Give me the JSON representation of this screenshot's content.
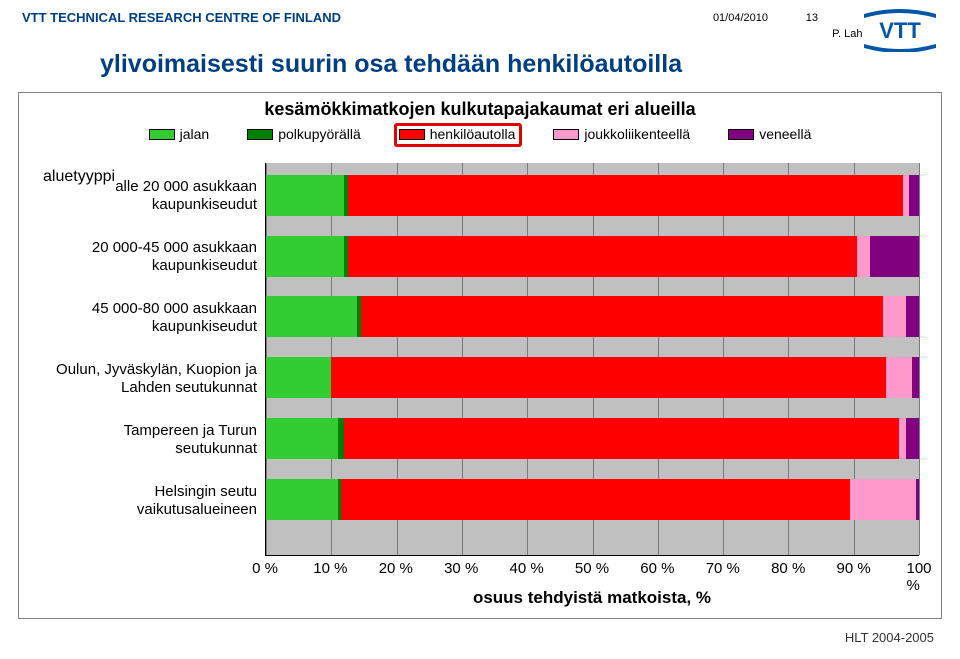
{
  "header": {
    "org": "VTT TECHNICAL RESEARCH CENTRE OF FINLAND",
    "date": "01/04/2010",
    "pagenum": "13",
    "author": "P. Lahti",
    "logo_text": "VTT",
    "logo_colors": {
      "bg": "#ffffff",
      "text": "#0057a6",
      "bar1": "#0057a6",
      "bar2": "#7fa9d4"
    }
  },
  "title": "ylivoimaisesti suurin osa tehdään henkilöautoilla",
  "chart": {
    "title": "kesämökkimatkojen kulkutapajakaumat eri alueilla",
    "title_fontsize": 18,
    "background_color": "#c0c0c0",
    "grid_color": "#7a7a7a",
    "bar_bg": "#ffffff",
    "y_axis_label": "aluetyyppi",
    "x_axis_title": "osuus tehdyistä matkoista, %",
    "xlim": [
      0,
      100
    ],
    "xtick_step": 10,
    "xtick_suffix": " %",
    "highlight_legend_index": 2,
    "highlight_color": "#e00000",
    "legend": [
      {
        "label": "jalan",
        "color": "#33cc33"
      },
      {
        "label": "polkupyörällä",
        "color": "#008000"
      },
      {
        "label": "henkilöautolla",
        "color": "#ff0000"
      },
      {
        "label": "joukkoliikenteellä",
        "color": "#ff99cc"
      },
      {
        "label": "veneellä",
        "color": "#800080"
      }
    ],
    "categories": [
      {
        "label_lines": [
          "alle 20 000 asukkaan",
          "kaupunkiseudut"
        ],
        "values": [
          12,
          0.5,
          85,
          1,
          1.5
        ]
      },
      {
        "label_lines": [
          "20 000-45 000 asukkaan",
          "kaupunkiseudut"
        ],
        "values": [
          12,
          0.5,
          78,
          2,
          7.5
        ]
      },
      {
        "label_lines": [
          "45 000-80 000 asukkaan",
          "kaupunkiseudut"
        ],
        "values": [
          14,
          0.5,
          80,
          3.5,
          2
        ]
      },
      {
        "label_lines": [
          "Oulun, Jyväskylän, Kuopion ja",
          "Lahden seutukunnat"
        ],
        "values": [
          10,
          0,
          85,
          4,
          1
        ]
      },
      {
        "label_lines": [
          "Tampereen ja Turun",
          "seutukunnat"
        ],
        "values": [
          11,
          1,
          85,
          1,
          2
        ]
      },
      {
        "label_lines": [
          "Helsingin seutu",
          "vaikutusalueineen"
        ],
        "values": [
          11,
          0.5,
          78,
          10,
          0.5
        ]
      }
    ],
    "bar_row_height_pct": 10.5,
    "bar_gap_pct": 5.0,
    "first_bar_top_pct": 3.0
  },
  "source": "HLT 2004-2005"
}
